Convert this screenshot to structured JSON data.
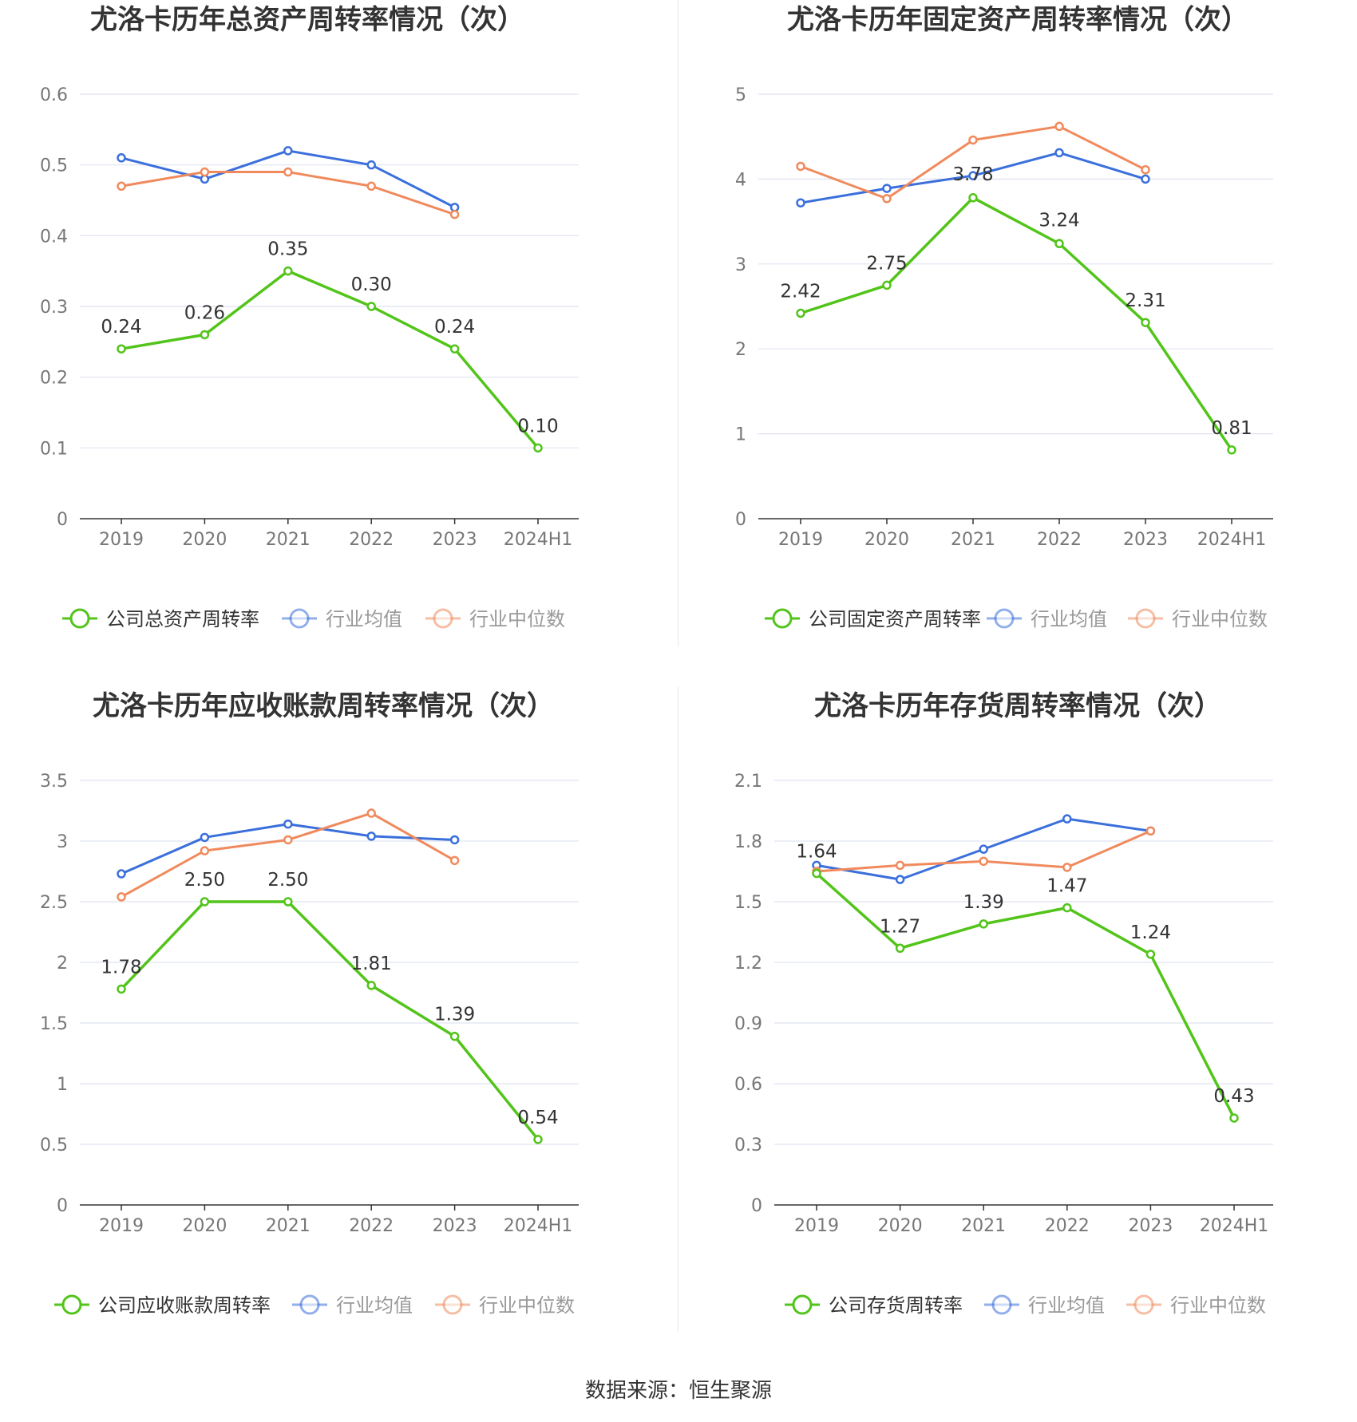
{
  "source": "数据来源：恒生聚源",
  "colors": {
    "company": "#52c41a",
    "avg": "#3a6fdc",
    "median": "#f08a5d",
    "grid": "#dfe3f0",
    "axis": "#333333"
  },
  "legend_common": {
    "avg": "行业均值",
    "median": "行业中位数"
  },
  "chart_data": [
    {
      "type": "line",
      "title": "尤洛卡历年总资产周转率情况（次）",
      "categories": [
        "2019",
        "2020",
        "2021",
        "2022",
        "2023",
        "2024H1"
      ],
      "yticks": [
        "0",
        "0.1",
        "0.2",
        "0.3",
        "0.4",
        "0.5",
        "0.6"
      ],
      "ylim": [
        0,
        0.6
      ],
      "series": [
        {
          "name": "公司总资产周转率",
          "key": "company",
          "values": [
            0.24,
            0.26,
            0.35,
            0.3,
            0.24,
            0.1
          ],
          "labels": [
            "0.24",
            "0.26",
            "0.35",
            "0.30",
            "0.24",
            "0.10"
          ]
        },
        {
          "name": "行业均值",
          "key": "avg",
          "values": [
            0.51,
            0.48,
            0.52,
            0.5,
            0.44,
            null
          ]
        },
        {
          "name": "行业中位数",
          "key": "median",
          "values": [
            0.47,
            0.49,
            0.49,
            0.47,
            0.43,
            null
          ]
        }
      ]
    },
    {
      "type": "line",
      "title": "尤洛卡历年固定资产周转率情况（次）",
      "categories": [
        "2019",
        "2020",
        "2021",
        "2022",
        "2023",
        "2024H1"
      ],
      "yticks": [
        "0",
        "1",
        "2",
        "3",
        "4",
        "5"
      ],
      "ylim": [
        0,
        5
      ],
      "series": [
        {
          "name": "公司固定资产周转率",
          "key": "company",
          "values": [
            2.42,
            2.75,
            3.78,
            3.24,
            2.31,
            0.81
          ],
          "labels": [
            "2.42",
            "2.75",
            "3.78",
            "3.24",
            "2.31",
            "0.81"
          ]
        },
        {
          "name": "行业均值",
          "key": "avg",
          "values": [
            3.72,
            3.89,
            4.04,
            4.31,
            4.0,
            null
          ]
        },
        {
          "name": "行业中位数",
          "key": "median",
          "values": [
            4.15,
            3.77,
            4.46,
            4.62,
            4.11,
            null
          ]
        }
      ]
    },
    {
      "type": "line",
      "title": "尤洛卡历年应收账款周转率情况（次）",
      "categories": [
        "2019",
        "2020",
        "2021",
        "2022",
        "2023",
        "2024H1"
      ],
      "yticks": [
        "0",
        "0.5",
        "1",
        "1.5",
        "2",
        "2.5",
        "3",
        "3.5"
      ],
      "ylim": [
        0,
        3.5
      ],
      "series": [
        {
          "name": "公司应收账款周转率",
          "key": "company",
          "values": [
            1.78,
            2.5,
            2.5,
            1.81,
            1.39,
            0.54
          ],
          "labels": [
            "1.78",
            "2.50",
            "2.50",
            "1.81",
            "1.39",
            "0.54"
          ]
        },
        {
          "name": "行业均值",
          "key": "avg",
          "values": [
            2.73,
            3.03,
            3.14,
            3.04,
            3.01,
            null
          ]
        },
        {
          "name": "行业中位数",
          "key": "median",
          "values": [
            2.54,
            2.92,
            3.01,
            3.23,
            2.84,
            null
          ]
        }
      ]
    },
    {
      "type": "line",
      "title": "尤洛卡历年存货周转率情况（次）",
      "categories": [
        "2019",
        "2020",
        "2021",
        "2022",
        "2023",
        "2024H1"
      ],
      "yticks": [
        "0",
        "0.3",
        "0.6",
        "0.9",
        "1.2",
        "1.5",
        "1.8",
        "2.1"
      ],
      "ylim": [
        0,
        2.1
      ],
      "series": [
        {
          "name": "公司存货周转率",
          "key": "company",
          "values": [
            1.64,
            1.27,
            1.39,
            1.47,
            1.24,
            0.43
          ],
          "labels": [
            "1.64",
            "1.27",
            "1.39",
            "1.47",
            "1.24",
            "0.43"
          ]
        },
        {
          "name": "行业均值",
          "key": "avg",
          "values": [
            1.68,
            1.61,
            1.76,
            1.91,
            1.85,
            null
          ]
        },
        {
          "name": "行业中位数",
          "key": "median",
          "values": [
            1.65,
            1.68,
            1.7,
            1.67,
            1.85,
            null
          ]
        }
      ]
    }
  ]
}
